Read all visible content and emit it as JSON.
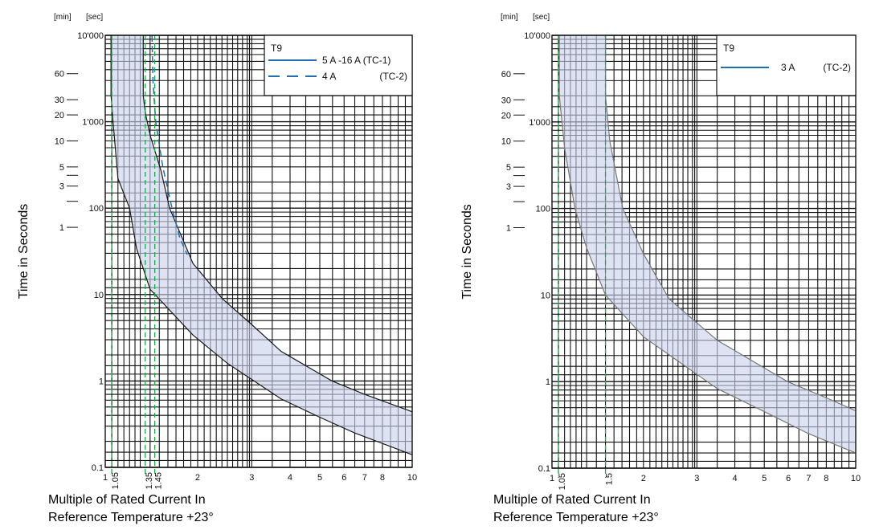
{
  "colors": {
    "band_fill": "#dfe4f3",
    "curve": "#1a1a1a",
    "legend_line": "#1f6fb2",
    "marker_line": "#18a84a",
    "grid": "#111111"
  },
  "chart_data": [
    {
      "type": "line",
      "xscale": "log",
      "yscale": "log",
      "xlim": [
        1,
        10
      ],
      "ylim": [
        0.1,
        10000
      ],
      "grid": true,
      "legend_placement": "top-right",
      "xlabel_line1": "Multiple of Rated Current In",
      "xlabel_line2": "Reference Temperature +23°",
      "ylabel": "Time in Seconds",
      "unit_min": "[min]",
      "unit_sec": "[sec]",
      "x_ticks": [
        {
          "v": 1,
          "label": "1"
        },
        {
          "v": 2,
          "label": "2"
        },
        {
          "v": 3,
          "label": "3"
        },
        {
          "v": 4,
          "label": "4"
        },
        {
          "v": 5,
          "label": "5"
        },
        {
          "v": 6,
          "label": "6"
        },
        {
          "v": 7,
          "label": "7"
        },
        {
          "v": 8,
          "label": "8"
        },
        {
          "v": 10,
          "label": "10"
        }
      ],
      "x_markers": [
        {
          "v": 1.05,
          "label": "1.05"
        },
        {
          "v": 1.35,
          "label": "1.35"
        },
        {
          "v": 1.45,
          "label": "1.45"
        }
      ],
      "y_ticks_sec": [
        {
          "v": 10000,
          "label": "10'000"
        },
        {
          "v": 1000,
          "label": "1'000"
        },
        {
          "v": 100,
          "label": "100"
        },
        {
          "v": 10,
          "label": "10"
        },
        {
          "v": 1,
          "label": "1"
        },
        {
          "v": 0.1,
          "label": "0.1"
        }
      ],
      "y_ticks_min": [
        {
          "v": 60,
          "label": "60"
        },
        {
          "v": 30,
          "label": "30"
        },
        {
          "v": 20,
          "label": "20"
        },
        {
          "v": 10,
          "label": "10"
        },
        {
          "v": 5,
          "label": "5"
        },
        {
          "v": 4,
          "label": ""
        },
        {
          "v": 3,
          "label": "3"
        },
        {
          "v": 2,
          "label": ""
        },
        {
          "v": 1,
          "label": "1"
        }
      ],
      "legend": {
        "title": "T9",
        "entries": [
          {
            "label": "5 A -16 A (TC-1)",
            "style": "solid"
          },
          {
            "label": "4 A",
            "suffix": "(TC-2)",
            "style": "dashed"
          }
        ]
      },
      "band_upper": [
        [
          1.33,
          10000
        ],
        [
          1.33,
          2000
        ],
        [
          1.35,
          1280
        ],
        [
          1.4,
          700
        ],
        [
          1.52,
          269
        ],
        [
          1.62,
          100
        ],
        [
          1.93,
          23
        ],
        [
          2.41,
          8.9
        ],
        [
          3,
          4.5
        ],
        [
          3.74,
          2.2
        ],
        [
          5.48,
          1.0
        ],
        [
          7,
          0.7
        ],
        [
          10,
          0.44
        ]
      ],
      "band_lower": [
        [
          1.044,
          10000
        ],
        [
          1.044,
          2050
        ],
        [
          1.06,
          1000
        ],
        [
          1.1,
          220
        ],
        [
          1.2,
          100
        ],
        [
          1.265,
          34
        ],
        [
          1.4,
          11.5
        ],
        [
          1.93,
          3.4
        ],
        [
          2.5,
          1.6
        ],
        [
          3.74,
          0.62
        ],
        [
          5,
          0.38
        ],
        [
          6.5,
          0.25
        ],
        [
          10,
          0.14
        ]
      ],
      "dashed_curve": {
        "name": "4 A (TC-2)",
        "points": [
          [
            1.42,
            10000
          ],
          [
            1.43,
            3000
          ],
          [
            1.46,
            1000
          ],
          [
            1.54,
            300
          ],
          [
            1.65,
            100
          ],
          [
            1.75,
            45
          ],
          [
            1.85,
            29
          ]
        ]
      }
    },
    {
      "type": "line",
      "xscale": "log",
      "yscale": "log",
      "xlim": [
        1,
        10
      ],
      "ylim": [
        0.1,
        10000
      ],
      "grid": true,
      "legend_placement": "top-right",
      "xlabel_line1": "Multiple of Rated Current In",
      "xlabel_line2": "Reference Temperature +23°",
      "ylabel": "Time in Seconds",
      "unit_min": "[min]",
      "unit_sec": "[sec]",
      "x_ticks": [
        {
          "v": 1,
          "label": "1"
        },
        {
          "v": 2,
          "label": "2"
        },
        {
          "v": 3,
          "label": "3"
        },
        {
          "v": 4,
          "label": "4"
        },
        {
          "v": 5,
          "label": "5"
        },
        {
          "v": 6,
          "label": "6"
        },
        {
          "v": 7,
          "label": "7"
        },
        {
          "v": 8,
          "label": "8"
        },
        {
          "v": 10,
          "label": "10"
        }
      ],
      "x_markers": [
        {
          "v": 1.05,
          "label": "1.05"
        },
        {
          "v": 1.5,
          "label": "1.5"
        }
      ],
      "y_ticks_sec": [
        {
          "v": 10000,
          "label": "10'000"
        },
        {
          "v": 1000,
          "label": "1'000"
        },
        {
          "v": 100,
          "label": "100"
        },
        {
          "v": 10,
          "label": "10"
        },
        {
          "v": 1,
          "label": "1"
        },
        {
          "v": 0.1,
          "label": "0.1"
        }
      ],
      "y_ticks_min": [
        {
          "v": 60,
          "label": "60"
        },
        {
          "v": 30,
          "label": "30"
        },
        {
          "v": 20,
          "label": "20"
        },
        {
          "v": 10,
          "label": "10"
        },
        {
          "v": 5,
          "label": "5"
        },
        {
          "v": 4,
          "label": ""
        },
        {
          "v": 3,
          "label": "3"
        },
        {
          "v": 2,
          "label": ""
        },
        {
          "v": 1,
          "label": "1"
        }
      ],
      "legend": {
        "title": "T9",
        "entries": [
          {
            "label": "3  A",
            "suffix": "(TC-2)",
            "style": "solid"
          }
        ]
      },
      "band_upper": [
        [
          1.5,
          10000
        ],
        [
          1.5,
          2000
        ],
        [
          1.55,
          600
        ],
        [
          1.71,
          100
        ],
        [
          2.0,
          30
        ],
        [
          2.43,
          9
        ],
        [
          3.5,
          3
        ],
        [
          5.96,
          1
        ],
        [
          8,
          0.65
        ],
        [
          10,
          0.46
        ]
      ],
      "band_lower": [
        [
          1.057,
          10000
        ],
        [
          1.057,
          2000
        ],
        [
          1.1,
          500
        ],
        [
          1.19,
          100
        ],
        [
          1.3,
          35
        ],
        [
          1.5,
          10
        ],
        [
          2,
          3.3
        ],
        [
          2.5,
          1.9
        ],
        [
          3.5,
          0.83
        ],
        [
          5,
          0.45
        ],
        [
          7,
          0.25
        ],
        [
          10,
          0.15
        ]
      ]
    }
  ]
}
